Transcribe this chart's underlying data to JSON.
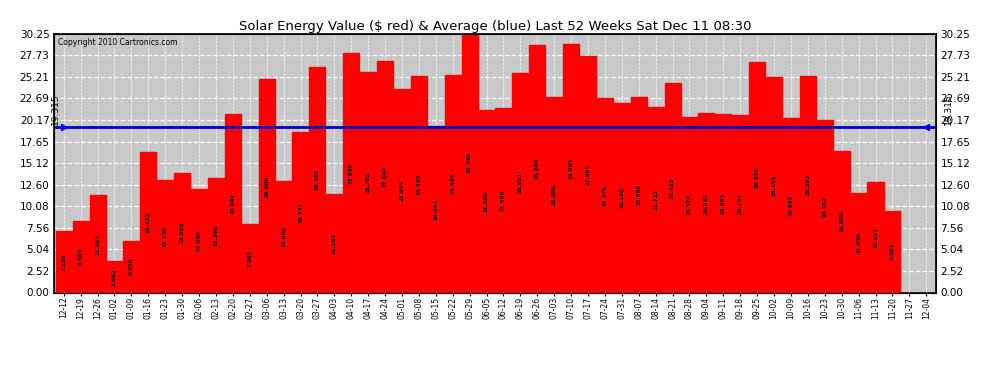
{
  "title": "Solar Energy Value ($ red) & Average (blue) Last 52 Weeks Sat Dec 11 08:30",
  "copyright": "Copyright 2010 Cartronics.com",
  "average_value": 19.315,
  "average_label": "19.315",
  "bar_color": "#ff0000",
  "average_line_color": "#0000cc",
  "background_color": "#ffffff",
  "plot_bg_color": "#c8c8c8",
  "grid_color": "#ffffff",
  "ylim": [
    0.0,
    30.25
  ],
  "yticks": [
    0.0,
    2.52,
    5.04,
    7.56,
    10.08,
    12.6,
    15.12,
    17.65,
    20.17,
    22.69,
    25.21,
    27.73,
    30.25
  ],
  "categories": [
    "12-12",
    "12-19",
    "12-26",
    "01-02",
    "01-09",
    "01-16",
    "01-23",
    "01-30",
    "02-06",
    "02-13",
    "02-20",
    "02-27",
    "03-06",
    "03-13",
    "03-20",
    "03-27",
    "04-03",
    "04-10",
    "04-17",
    "04-24",
    "05-01",
    "05-08",
    "05-15",
    "05-22",
    "05-29",
    "06-05",
    "06-12",
    "06-19",
    "06-26",
    "07-03",
    "07-10",
    "07-17",
    "07-24",
    "07-31",
    "08-07",
    "08-14",
    "08-21",
    "08-28",
    "09-04",
    "09-11",
    "09-18",
    "09-25",
    "10-02",
    "10-09",
    "10-16",
    "10-23",
    "10-30",
    "11-06",
    "11-13",
    "11-20",
    "11-27",
    "12-04"
  ],
  "values": [
    7.189,
    8.383,
    11.364,
    3.662,
    6.03,
    16.433,
    13.13,
    13.965,
    12.08,
    13.39,
    20.841,
    7.995,
    24.906,
    13.006,
    18.771,
    26.367,
    11.563,
    27.942,
    25.782,
    27.084,
    23.844,
    25.343,
    19.441,
    25.443,
    30.349,
    21.3,
    21.56,
    25.651,
    28.9,
    22.86,
    29.005,
    27.594,
    22.779,
    22.18,
    22.858,
    21.713,
    24.435,
    20.528,
    20.941,
    20.835,
    20.744,
    26.976,
    25.145,
    20.449,
    25.293,
    20.187,
    16.59,
    11.639,
    12.927,
    9.581,
    0.0,
    0.0
  ],
  "labels": [
    "7.189",
    "8.383",
    "11.364",
    "3.662",
    "6.030",
    "16.433",
    "13.130",
    "13.965",
    "12.080",
    "13.390",
    "20.841",
    "7.995",
    "24.906",
    "13.006",
    "18.771",
    "26.367",
    "11.563",
    "27.942",
    "25.782",
    "27.084",
    "23.844",
    "25.343",
    "19.441",
    "25.443",
    "30.349",
    "21.300",
    "21.560",
    "25.651",
    "28.900",
    "22.860",
    "29.005",
    "27.594",
    "22.779",
    "22.180",
    "22.858",
    "21.713",
    "24.435",
    "20.528",
    "20.941",
    "20.835",
    "20.744",
    "26.976",
    "25.145",
    "20.449",
    "25.293",
    "20.187",
    "16.590",
    "11.639",
    "12.927",
    "9.581",
    "",
    "  "
  ]
}
